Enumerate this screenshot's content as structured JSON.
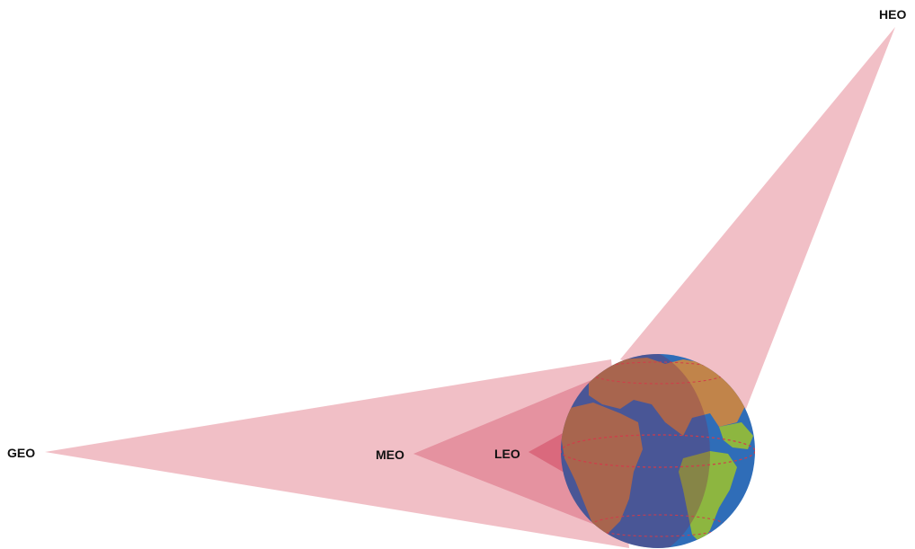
{
  "labels": {
    "geo": "GEO",
    "meo": "MEO",
    "leo": "LEO",
    "heo": "HEO"
  },
  "colors": {
    "coverage": "#e58a98",
    "ocean": "#2f6db8",
    "land_dark": "#c1844a",
    "land_green": "#8db640",
    "shadow": "#7a2a55",
    "equator": "#d23b4a"
  },
  "icons": {
    "earth": "earth-globe-icon"
  }
}
